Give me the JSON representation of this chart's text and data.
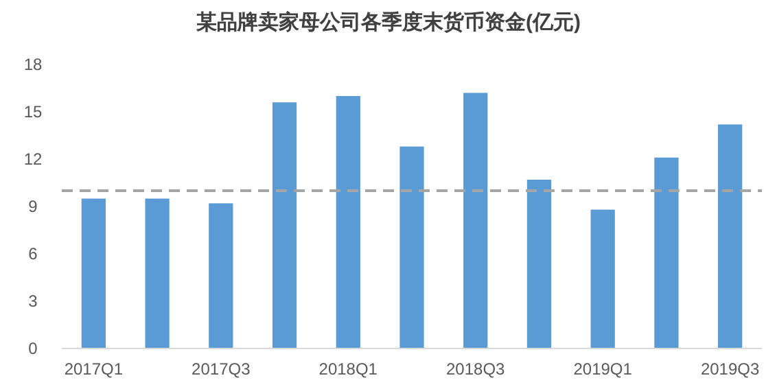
{
  "chart_data": {
    "type": "bar",
    "title": "某品牌卖家母公司各季度末货币资金(亿元)",
    "categories": [
      "2017Q1",
      null,
      "2017Q3",
      null,
      "2018Q1",
      null,
      "2018Q3",
      null,
      "2019Q1",
      null,
      "2019Q3"
    ],
    "series": [
      {
        "color": "#5b9bd5",
        "values": [
          9.5,
          9.5,
          9.2,
          15.6,
          16.0,
          12.8,
          16.2,
          10.7,
          8.8,
          12.1,
          14.2
        ]
      }
    ],
    "ylim": [
      0,
      18
    ],
    "yticks": [
      0,
      3,
      6,
      9,
      12,
      15,
      18
    ],
    "grid": false,
    "ref_lines": [
      {
        "axis": "y",
        "value": 10,
        "color": "#a5a5a5",
        "line_style": "dashed"
      }
    ]
  }
}
